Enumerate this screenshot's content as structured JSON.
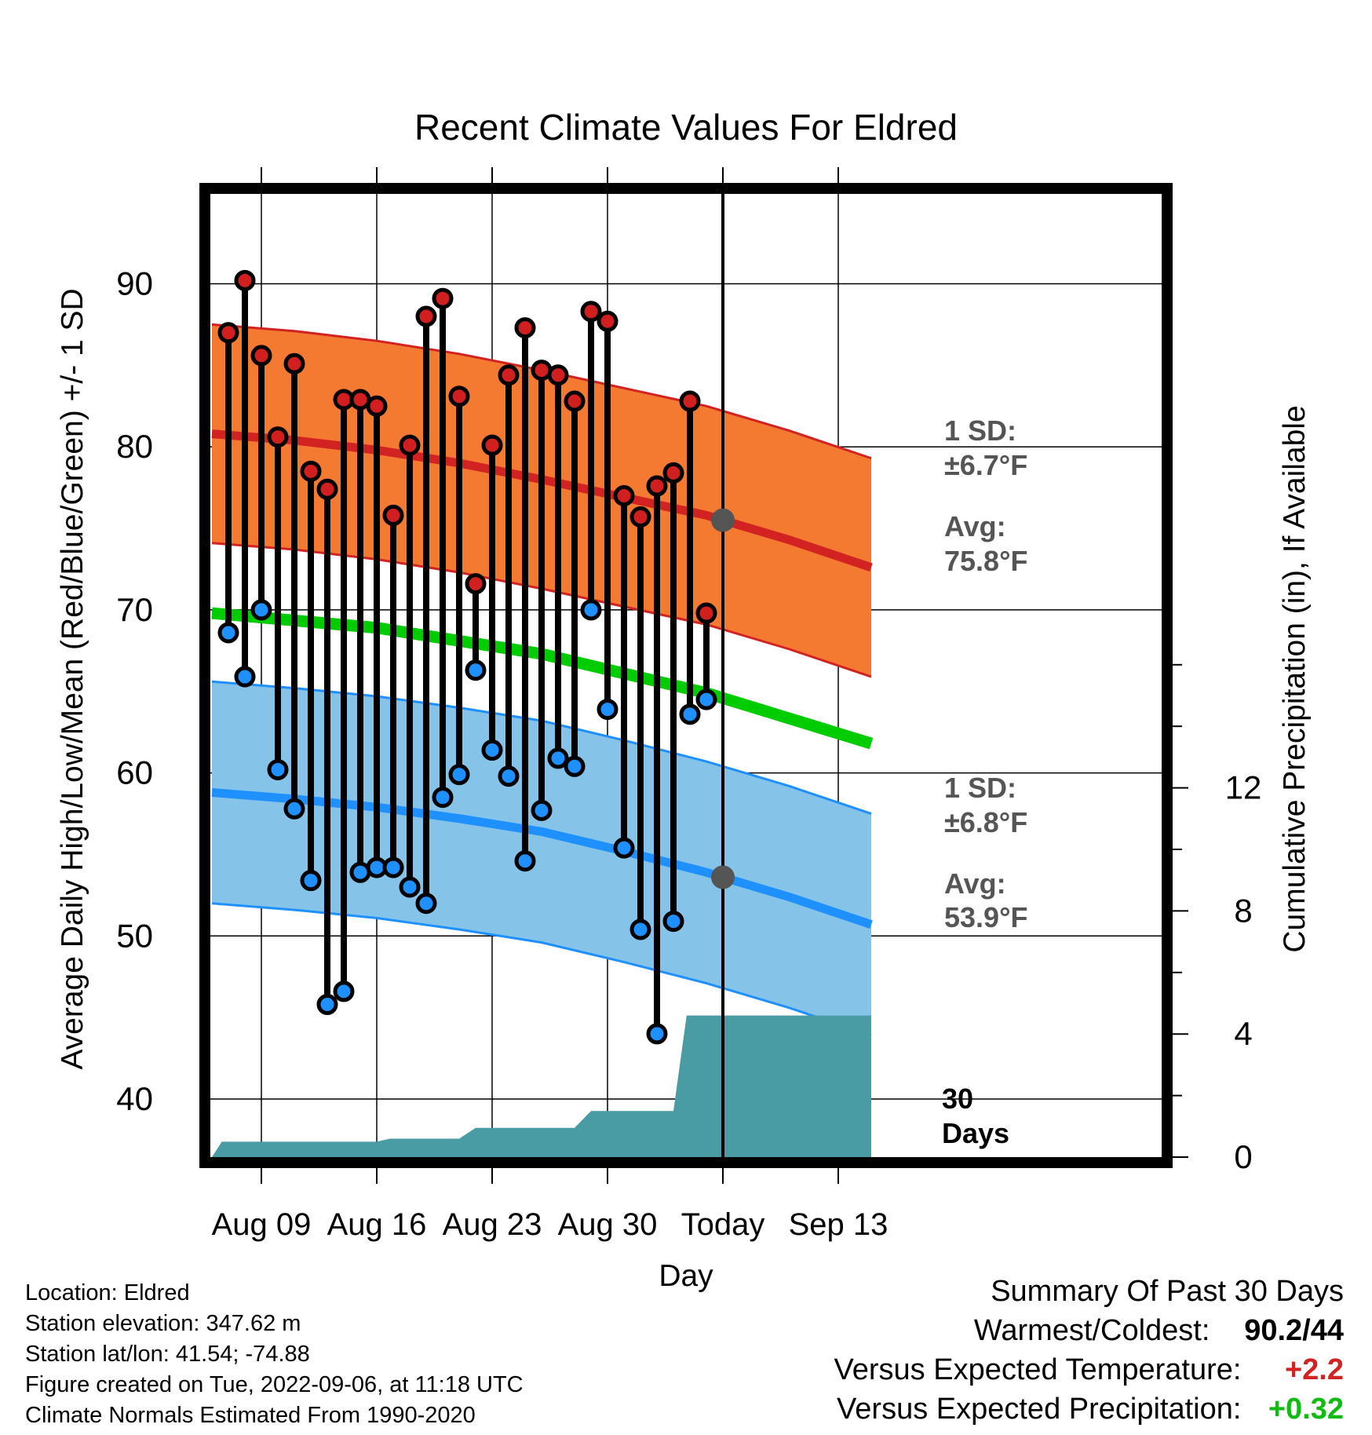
{
  "chart_data": {
    "type": "line",
    "title": "Recent Climate Values For Eldred",
    "xlabel": "Day",
    "ylabel": "Average Daily High/Low/Mean (Red/Blue/Green) +/- 1 SD",
    "y2label": "Cumulative Precipitation (in), If Available",
    "x_start": "Aug 06",
    "x_end": "Sep 15",
    "today": "Sep 06",
    "xticks": [
      {
        "day": 3,
        "label": "Aug 09"
      },
      {
        "day": 10,
        "label": "Aug 16"
      },
      {
        "day": 17,
        "label": "Aug 23"
      },
      {
        "day": 24,
        "label": "Aug 30"
      },
      {
        "day": 31,
        "label": "Today"
      },
      {
        "day": 38,
        "label": "Sep 13"
      }
    ],
    "ylim": [
      36,
      95
    ],
    "yticks": [
      40,
      50,
      60,
      70,
      80,
      90
    ],
    "y2lim": [
      0,
      17.6
    ],
    "y2ticks": [
      0,
      4,
      8,
      12
    ],
    "grid": true,
    "observed": {
      "days": [
        1,
        2,
        3,
        4,
        5,
        6,
        7,
        8,
        9,
        10,
        11,
        12,
        13,
        14,
        15,
        16,
        17,
        18,
        19,
        20,
        21,
        22,
        23,
        24,
        25,
        26,
        27,
        28,
        29,
        30
      ],
      "high": [
        87.0,
        90.2,
        85.6,
        80.6,
        85.1,
        78.5,
        77.4,
        82.9,
        82.9,
        82.5,
        75.8,
        80.1,
        88.0,
        89.1,
        83.1,
        71.6,
        80.1,
        84.4,
        87.3,
        84.7,
        84.4,
        82.8,
        88.3,
        87.7,
        77.0,
        75.7,
        77.6,
        78.4,
        82.8,
        69.8
      ],
      "low": [
        68.6,
        65.9,
        70.0,
        60.2,
        57.8,
        53.4,
        45.8,
        46.6,
        53.9,
        54.2,
        54.2,
        53.0,
        52.0,
        58.5,
        59.9,
        66.3,
        61.4,
        59.8,
        54.6,
        57.7,
        60.9,
        60.4,
        70.0,
        63.9,
        55.4,
        50.4,
        44.0,
        50.9,
        63.6,
        64.5
      ]
    },
    "normal_high": {
      "days": [
        0,
        5,
        10,
        15,
        20,
        25,
        30,
        35,
        40
      ],
      "mean": [
        80.8,
        80.4,
        79.8,
        79.0,
        78.0,
        76.9,
        75.8,
        74.3,
        72.6
      ],
      "sd": 6.7
    },
    "normal_low": {
      "days": [
        0,
        5,
        10,
        15,
        20,
        25,
        30,
        35,
        40
      ],
      "mean": [
        58.8,
        58.4,
        57.9,
        57.2,
        56.4,
        55.2,
        53.9,
        52.4,
        50.7
      ],
      "sd": 6.8
    },
    "normal_mean": {
      "days": [
        0,
        10,
        20,
        30,
        40
      ],
      "values": [
        69.8,
        68.9,
        67.3,
        64.9,
        61.8
      ]
    },
    "cumulative_precip": {
      "days": [
        0,
        0.6,
        10,
        10.8,
        15,
        16,
        22,
        23,
        28,
        28.8,
        40
      ],
      "values": [
        0,
        0.5,
        0.5,
        0.6,
        0.6,
        0.95,
        0.95,
        1.5,
        1.5,
        4.6,
        4.6
      ]
    },
    "annotations": {
      "high_sd": "1 SD:",
      "high_sd_value": "±6.7°F",
      "high_avg": "Avg:",
      "high_avg_value": "75.8°F",
      "low_sd": "1 SD:",
      "low_sd_value": "±6.8°F",
      "low_avg": "Avg:",
      "low_avg_value": "53.9°F",
      "days_label_1": "30",
      "days_label_2": "Days"
    },
    "colors": {
      "high_band": "#f37a30",
      "high_line": "#d22222",
      "low_band": "#86c3e9",
      "low_line": "#1e90ff",
      "mean_line": "#00cc00",
      "precip": "#4a9ca4",
      "annotation": "#555555",
      "high_dot": "#d11f1f",
      "low_dot": "#1e90ff"
    }
  },
  "info": {
    "location": "Location: Eldred",
    "elevation": "Station elevation: 347.62 m",
    "latlon": "Station lat/lon: 41.54; -74.88",
    "created": "Figure created on Tue, 2022-09-06, at 11:18 UTC",
    "normals": "Climate Normals Estimated From 1990-2020"
  },
  "summary": {
    "title": "Summary Of Past 30 Days",
    "warm_cold_label": "Warmest/Coldest:",
    "warm_cold_value": "90.2/44",
    "temp_label": "Versus Expected Temperature:",
    "temp_value": "+2.2",
    "temp_color": "#d22222",
    "precip_label": "Versus Expected Precipitation:",
    "precip_value": "+0.32",
    "precip_color": "#11bb11"
  }
}
